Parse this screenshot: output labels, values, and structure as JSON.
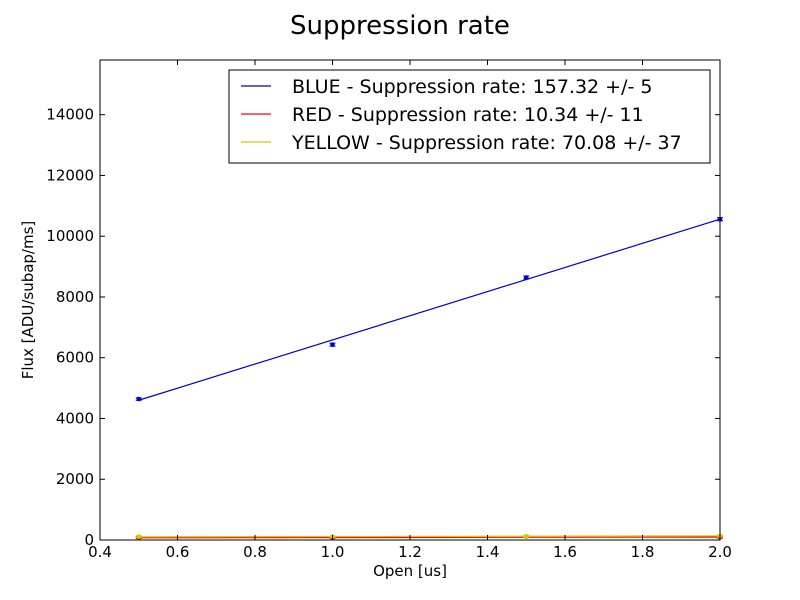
{
  "chart_data": {
    "type": "line",
    "title": "Suppression rate",
    "xlabel": "Open [us]",
    "ylabel": "Flux [ADU/subap/ms]",
    "xlim": [
      0.4,
      2.0
    ],
    "ylim": [
      0,
      15800
    ],
    "xticks": [
      0.4,
      0.6,
      0.8,
      1.0,
      1.2,
      1.4,
      1.6,
      1.8,
      2.0
    ],
    "xtick_labels": [
      "0.4",
      "0.6",
      "0.8",
      "1.0",
      "1.2",
      "1.4",
      "1.6",
      "1.8",
      "2.0"
    ],
    "yticks": [
      0,
      2000,
      4000,
      6000,
      8000,
      10000,
      12000,
      14000
    ],
    "ytick_labels": [
      "0",
      "2000",
      "4000",
      "6000",
      "8000",
      "10000",
      "12000",
      "14000"
    ],
    "grid": false,
    "legend_position": "top-right",
    "series": [
      {
        "name": "BLUE - Suppression rate: 157.32 +/- 5",
        "color": "#0000cc",
        "points": [
          {
            "x": 0.5,
            "y": 4640,
            "err": 40
          },
          {
            "x": 1.0,
            "y": 6430,
            "err": 50
          },
          {
            "x": 1.5,
            "y": 8640,
            "err": 50
          },
          {
            "x": 2.0,
            "y": 10560,
            "err": 50
          }
        ],
        "fit": {
          "x": [
            0.5,
            2.0
          ],
          "y": [
            4600,
            10560
          ]
        }
      },
      {
        "name": "RED - Suppression rate: 10.34 +/- 11",
        "color": "#ff0000",
        "points": [
          {
            "x": 0.5,
            "y": 80,
            "err": 30
          },
          {
            "x": 1.0,
            "y": 80,
            "err": 30
          },
          {
            "x": 1.5,
            "y": 110,
            "err": 30
          },
          {
            "x": 2.0,
            "y": 90,
            "err": 30
          }
        ],
        "fit": {
          "x": [
            0.5,
            2.0
          ],
          "y": [
            75,
            95
          ]
        }
      },
      {
        "name": "YELLOW - Suppression rate: 70.08 +/- 37",
        "color": "#cccc00",
        "points": [
          {
            "x": 0.5,
            "y": 110,
            "err": 30
          },
          {
            "x": 1.0,
            "y": 110,
            "err": 30
          },
          {
            "x": 1.5,
            "y": 120,
            "err": 30
          },
          {
            "x": 2.0,
            "y": 130,
            "err": 30
          }
        ],
        "fit": {
          "x": [
            0.5,
            2.0
          ],
          "y": [
            105,
            135
          ]
        }
      }
    ]
  }
}
